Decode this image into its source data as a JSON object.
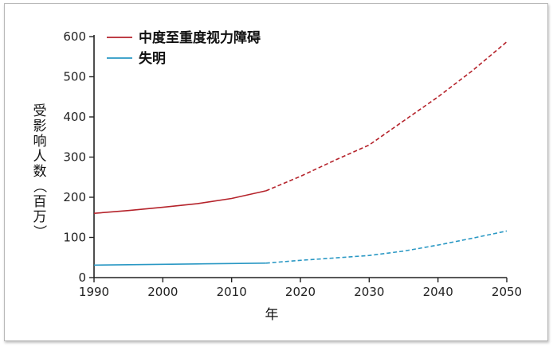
{
  "chart_data": {
    "type": "line",
    "title": "",
    "xlabel": "年",
    "ylabel": "受影响人数（百万）",
    "ylabel_chars": [
      "受",
      "影",
      "响",
      "人",
      "数",
      "（",
      "百",
      "万",
      "）"
    ],
    "xlim": [
      1990,
      2050
    ],
    "ylim": [
      0,
      600
    ],
    "x_ticks": [
      1990,
      2000,
      2010,
      2020,
      2030,
      2040,
      2050
    ],
    "y_ticks": [
      0,
      100,
      200,
      300,
      400,
      500,
      600
    ],
    "legend_position": "top-left",
    "grid": false,
    "observed_until": 2015,
    "series": [
      {
        "name": "中度至重度视力障碍",
        "color": "#b5232b",
        "x": [
          1990,
          1995,
          2000,
          2005,
          2010,
          2015,
          2020,
          2025,
          2030,
          2035,
          2040,
          2045,
          2050
        ],
        "y": [
          160,
          167,
          175,
          184,
          197,
          216,
          252,
          292,
          330,
          390,
          450,
          515,
          587
        ]
      },
      {
        "name": "失明",
        "color": "#2a98c4",
        "x": [
          1990,
          1995,
          2000,
          2005,
          2010,
          2015,
          2020,
          2025,
          2030,
          2035,
          2040,
          2045,
          2050
        ],
        "y": [
          31,
          32,
          33,
          34,
          35,
          36,
          43,
          49,
          55,
          66,
          81,
          98,
          116
        ]
      }
    ]
  }
}
